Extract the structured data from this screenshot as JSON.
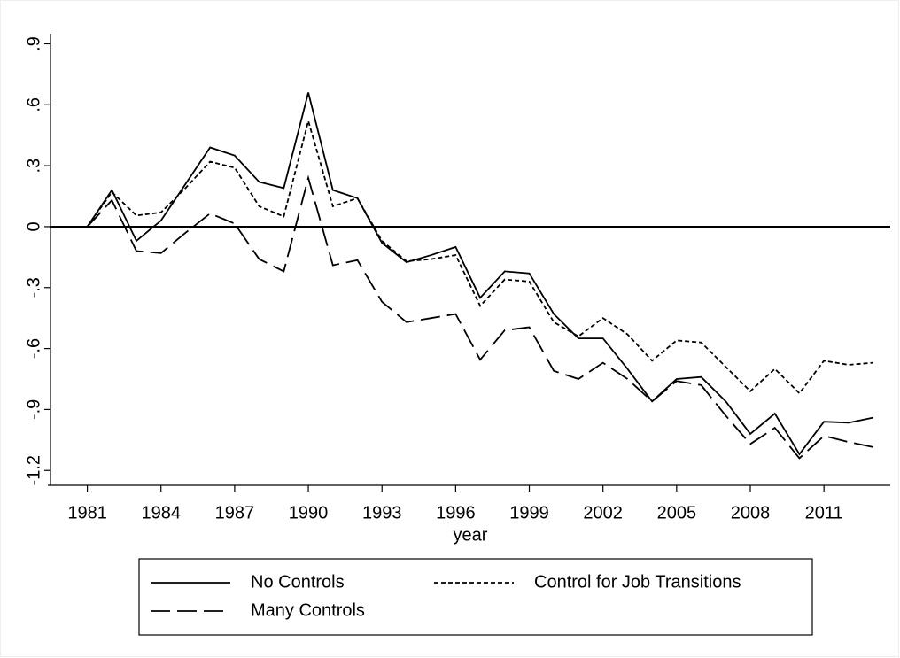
{
  "chart_data": {
    "type": "line",
    "x": [
      1981,
      1982,
      1983,
      1984,
      1985,
      1986,
      1987,
      1988,
      1989,
      1990,
      1991,
      1992,
      1993,
      1994,
      1995,
      1996,
      1997,
      1998,
      1999,
      2000,
      2001,
      2002,
      2003,
      2004,
      2005,
      2006,
      2007,
      2008,
      2009,
      2010,
      2011,
      2012,
      2013
    ],
    "x_label": "year",
    "xlim": [
      1979.5,
      2013.7
    ],
    "xticks": [
      1981,
      1984,
      1987,
      1990,
      1993,
      1996,
      1999,
      2002,
      2005,
      2008,
      2011
    ],
    "ylim": [
      -1.26,
      0.95
    ],
    "yticks": [
      {
        "value": 0.9,
        "label": ".9"
      },
      {
        "value": 0.6,
        "label": ".6"
      },
      {
        "value": 0.3,
        "label": ".3"
      },
      0,
      {
        "value": -0.3,
        "label": "-.3"
      },
      {
        "value": -0.6,
        "label": "-.6"
      },
      {
        "value": -0.9,
        "label": "-.9"
      },
      -1.2
    ],
    "reference_line": 0,
    "legend": "bottom",
    "series": [
      {
        "name": "No Controls",
        "color": "#000000",
        "dash": "solid",
        "values": [
          0,
          0.18,
          -0.07,
          0.03,
          0.21,
          0.39,
          0.35,
          0.22,
          0.19,
          0.66,
          0.18,
          0.14,
          -0.08,
          -0.175,
          -0.14,
          -0.1,
          -0.35,
          -0.22,
          -0.23,
          -0.43,
          -0.55,
          -0.55,
          -0.7,
          -0.86,
          -0.75,
          -0.74,
          -0.86,
          -1.02,
          -0.92,
          -1.12,
          -0.96,
          -0.965,
          -0.94
        ]
      },
      {
        "name": "Control for Job Transitions",
        "color": "#000000",
        "dash": "short",
        "values": [
          0,
          0.17,
          0.055,
          0.07,
          0.19,
          0.32,
          0.29,
          0.1,
          0.05,
          0.52,
          0.1,
          0.14,
          -0.07,
          -0.17,
          -0.16,
          -0.14,
          -0.39,
          -0.26,
          -0.27,
          -0.47,
          -0.54,
          -0.45,
          -0.53,
          -0.66,
          -0.56,
          -0.57,
          -0.69,
          -0.81,
          -0.7,
          -0.82,
          -0.66,
          -0.68,
          -0.67
        ]
      },
      {
        "name": "Many Controls",
        "color": "#000000",
        "dash": "long",
        "values": [
          0,
          0.13,
          -0.12,
          -0.13,
          -0.03,
          0.065,
          0.015,
          -0.16,
          -0.22,
          0.24,
          -0.19,
          -0.165,
          -0.37,
          -0.47,
          -0.45,
          -0.43,
          -0.655,
          -0.51,
          -0.495,
          -0.71,
          -0.75,
          -0.67,
          -0.75,
          -0.86,
          -0.76,
          -0.78,
          -0.93,
          -1.07,
          -0.99,
          -1.14,
          -1.03,
          -1.06,
          -1.085
        ]
      }
    ]
  }
}
